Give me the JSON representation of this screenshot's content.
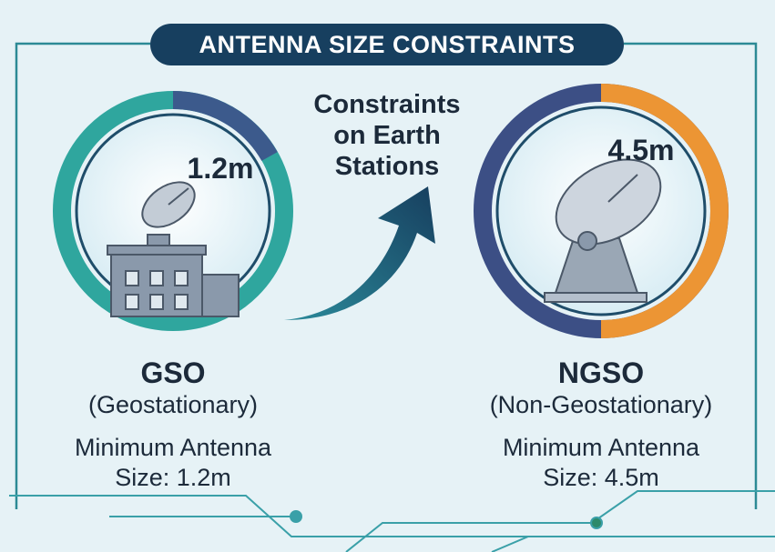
{
  "title": "ANTENNA SIZE CONSTRAINTS",
  "center_text": "Constraints on Earth Stations",
  "panels": [
    {
      "size_label": "1.2m",
      "name": "GSO",
      "subtitle": "(Geostationary)",
      "description": "Minimum Antenna Size: 1.2m"
    },
    {
      "size_label": "4.5m",
      "name": "NGSO",
      "subtitle": "(Non-Geostationary)",
      "description": "Minimum Antenna Size: 4.5m"
    }
  ]
}
